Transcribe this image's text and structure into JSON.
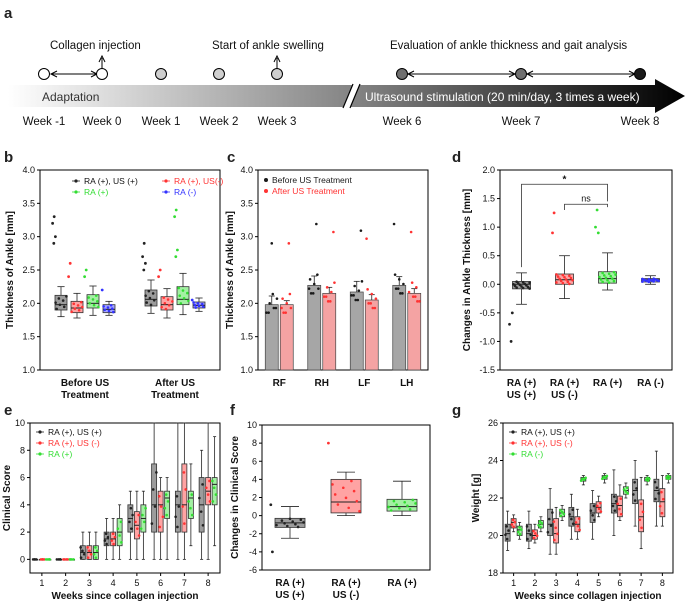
{
  "panel_labels": [
    "a",
    "b",
    "c",
    "d",
    "e",
    "f",
    "g"
  ],
  "timeline": {
    "events": [
      "Collagen injection",
      "Start of ankle swelling",
      "Evaluation of ankle thickness and gait analysis"
    ],
    "phase_adaptation": "Adaptation",
    "phase_ultrasound": "Ultrasound stimulation (20 min/day, 3 times a week)",
    "weeks": [
      "Week -1",
      "Week 0",
      "Week 1",
      "Week 2",
      "Week 3",
      "Week 6",
      "Week 7",
      "Week 8"
    ],
    "colors": {
      "open": "#ffffff",
      "light": "#cfcfcf",
      "mid": "#6f6f6f",
      "dark": "#1a1a1a"
    }
  },
  "chart_data": [
    {
      "id": "b",
      "type": "box",
      "ylabel": "Thickness of Ankle [mm]",
      "ylim": [
        1.0,
        4.0
      ],
      "yticks": [
        "1.0",
        "1.5",
        "2.0",
        "2.5",
        "3.0",
        "3.5",
        "4.0"
      ],
      "categories": [
        "Before US Treatment",
        "After US Treatment"
      ],
      "legend": [
        "RA (+), US (+)",
        "RA (+), US(-)",
        "RA (+)",
        "RA (-)"
      ],
      "colors": [
        "#222222",
        "#ff3333",
        "#33dd33",
        "#3333ff"
      ],
      "boxes": [
        [
          [
            1.8,
            1.9,
            1.98,
            2.12,
            2.25
          ],
          [
            1.78,
            1.86,
            1.93,
            2.03,
            2.15
          ],
          [
            1.82,
            1.93,
            2.0,
            2.13,
            2.26
          ],
          [
            1.82,
            1.86,
            1.91,
            1.98,
            2.03
          ]
        ],
        [
          [
            1.85,
            1.96,
            2.06,
            2.2,
            2.35
          ],
          [
            1.78,
            1.9,
            1.98,
            2.1,
            2.22
          ],
          [
            1.83,
            1.98,
            2.06,
            2.25,
            2.45
          ],
          [
            1.88,
            1.93,
            1.97,
            2.02,
            2.08
          ]
        ]
      ],
      "outliers": [
        [
          [
            3.3,
            3.2,
            3.0,
            2.9
          ],
          [
            2.6,
            2.4
          ],
          [
            2.5,
            2.4
          ],
          [
            2.2
          ]
        ],
        [
          [
            2.9,
            2.7,
            2.6,
            2.5
          ],
          [
            2.5,
            2.4
          ],
          [
            3.4,
            3.3,
            2.8,
            2.7
          ],
          [
            2.05
          ]
        ]
      ]
    },
    {
      "id": "c",
      "type": "bar",
      "ylabel": "Thickness of Ankle [mm]",
      "ylim": [
        1.0,
        4.0
      ],
      "yticks": [
        "1.0",
        "1.5",
        "2.0",
        "2.5",
        "3.0",
        "3.5",
        "4.0"
      ],
      "categories": [
        "RF",
        "RH",
        "LF",
        "LH"
      ],
      "series": [
        {
          "name": "Before US Treatment",
          "color": "#1a1a1a",
          "values": [
            1.98,
            2.27,
            2.17,
            2.27
          ],
          "err": [
            0.13,
            0.14,
            0.16,
            0.13
          ]
        },
        {
          "name": "After US Treatment",
          "color": "#ff3333",
          "values": [
            1.98,
            2.15,
            2.05,
            2.15
          ],
          "err": [
            0.06,
            0.09,
            0.08,
            0.07
          ]
        }
      ]
    },
    {
      "id": "d",
      "type": "box",
      "ylabel": "Changes in Ankle Thickness [mm]",
      "ylim": [
        -1.5,
        2.0
      ],
      "yticks": [
        "-1.5",
        "-1.0",
        "-0.5",
        "0.0",
        "0.5",
        "1.0",
        "1.5",
        "2.0"
      ],
      "categories": [
        "RA (+) US (+)",
        "RA (+) US (-)",
        "RA (+)",
        "RA (-)"
      ],
      "colors": [
        "#222222",
        "#ff3333",
        "#33dd33",
        "#3333ff"
      ],
      "boxes": [
        [
          -0.35,
          -0.08,
          0.0,
          0.05,
          0.2
        ],
        [
          -0.25,
          0.0,
          0.08,
          0.18,
          0.5
        ],
        [
          -0.1,
          0.02,
          0.1,
          0.22,
          0.55
        ],
        [
          0.0,
          0.04,
          0.08,
          0.1,
          0.15
        ]
      ],
      "outliers": [
        [
          -1.0,
          -0.7,
          -0.5
        ],
        [
          1.25,
          0.9
        ],
        [
          1.3,
          1.0,
          0.9
        ],
        []
      ],
      "annotations": {
        "significant": "*",
        "not_significant": "ns"
      }
    },
    {
      "id": "e",
      "type": "box",
      "ylabel": "Clinical Score",
      "ylim": [
        -1,
        10
      ],
      "yticks": [
        "0",
        "2",
        "4",
        "6",
        "8",
        "10"
      ],
      "xlabel": "Weeks since collagen injection",
      "categories": [
        "1",
        "2",
        "3",
        "4",
        "5",
        "6",
        "7",
        "8"
      ],
      "legend": [
        "RA (+), US (+)",
        "RA (+), US (-)",
        "RA (+)"
      ],
      "colors": [
        "#222222",
        "#ff3333",
        "#33dd33"
      ],
      "boxes": [
        [
          [
            0,
            0,
            0,
            0,
            0
          ],
          [
            0,
            0,
            0,
            0,
            0
          ],
          [
            0,
            0,
            0,
            0,
            0
          ]
        ],
        [
          [
            0,
            0,
            0,
            0,
            0
          ],
          [
            0,
            0,
            0,
            0,
            0
          ],
          [
            0,
            0,
            0,
            0,
            0
          ]
        ],
        [
          [
            0,
            0,
            0.5,
            1,
            2
          ],
          [
            0,
            0,
            0.5,
            1,
            2
          ],
          [
            0,
            0,
            0.5,
            1,
            2
          ]
        ],
        [
          [
            0,
            1,
            1.5,
            2,
            3
          ],
          [
            0,
            1,
            1.5,
            2,
            3
          ],
          [
            0,
            1,
            2,
            3,
            4
          ]
        ],
        [
          [
            0,
            2,
            3,
            4,
            5
          ],
          [
            0,
            1.5,
            2.5,
            3.5,
            5
          ],
          [
            0,
            2,
            3,
            4,
            5
          ]
        ],
        [
          [
            0,
            2,
            4,
            7,
            10
          ],
          [
            0,
            2,
            4,
            5,
            6
          ],
          [
            0,
            3,
            4.5,
            5,
            6
          ]
        ],
        [
          [
            0,
            2,
            4,
            5,
            10
          ],
          [
            0,
            2,
            4,
            7,
            10
          ],
          [
            1,
            3,
            4.5,
            5,
            7
          ]
        ],
        [
          [
            0,
            2,
            4,
            6,
            8
          ],
          [
            0,
            4,
            5,
            6,
            10
          ],
          [
            1,
            4,
            5.5,
            6,
            9
          ]
        ]
      ]
    },
    {
      "id": "f",
      "type": "box",
      "ylabel": "Changes in Clinical Score",
      "ylim": [
        -6,
        10
      ],
      "yticks": [
        "-6",
        "-4",
        "-2",
        "0",
        "2",
        "4",
        "6",
        "8",
        "10"
      ],
      "categories": [
        "RA (+) US (+)",
        "RA (+) US (-)",
        "RA (+)"
      ],
      "colors": [
        "#222222",
        "#ff3333",
        "#33dd33"
      ],
      "boxes": [
        [
          -2.5,
          -1.3,
          -0.8,
          -0.3,
          1.0
        ],
        [
          0,
          0.3,
          1.5,
          4.0,
          4.8
        ],
        [
          0,
          0.5,
          1.0,
          1.8,
          3.8
        ]
      ],
      "outliers": [
        [
          -4,
          1.2
        ],
        [
          8
        ],
        []
      ]
    },
    {
      "id": "g",
      "type": "box",
      "ylabel": "Weight [g]",
      "ylim": [
        18,
        26
      ],
      "yticks": [
        "18",
        "20",
        "22",
        "24",
        "26"
      ],
      "xlabel": "Weeks since collagen injection",
      "categories": [
        "1",
        "2",
        "3",
        "4",
        "5",
        "6",
        "7",
        "8"
      ],
      "legend": [
        "RA (+), US (+)",
        "RA (+), US (-)",
        "RA (-)"
      ],
      "colors": [
        "#222222",
        "#ff3333",
        "#33dd33"
      ],
      "boxes": [
        [
          [
            19.2,
            19.7,
            20.1,
            20.6,
            21.3
          ],
          [
            20.2,
            20.4,
            20.7,
            20.9,
            21.1
          ],
          [
            19.8,
            20.0,
            20.3,
            20.5,
            20.7
          ]
        ],
        [
          [
            19.3,
            19.7,
            20.1,
            20.6,
            21.3
          ],
          [
            19.6,
            19.8,
            20.0,
            20.3,
            20.6
          ],
          [
            20.2,
            20.4,
            20.6,
            20.8,
            21.0
          ]
        ],
        [
          [
            19.0,
            20.0,
            20.6,
            21.4,
            22.5
          ],
          [
            19.0,
            19.6,
            20.1,
            20.9,
            21.5
          ],
          [
            20.8,
            21.0,
            21.2,
            21.4,
            21.6
          ]
        ],
        [
          [
            19.8,
            20.5,
            21.0,
            21.5,
            22.2
          ],
          [
            19.8,
            20.2,
            20.6,
            21.0,
            21.4
          ],
          [
            22.7,
            22.9,
            23.0,
            23.1,
            23.2
          ]
        ],
        [
          [
            19.8,
            20.7,
            21.2,
            21.7,
            22.4
          ],
          [
            21.0,
            21.2,
            21.5,
            21.8,
            22.1
          ],
          [
            22.8,
            23.0,
            23.1,
            23.2,
            23.3
          ]
        ],
        [
          [
            20.0,
            21.2,
            21.7,
            22.2,
            23.5
          ],
          [
            20.8,
            21.0,
            21.6,
            22.1,
            22.7
          ],
          [
            22.0,
            22.2,
            22.4,
            22.6,
            22.8
          ]
        ],
        [
          [
            20.5,
            21.7,
            22.4,
            23.0,
            24.0
          ],
          [
            19.3,
            20.2,
            21.0,
            21.9,
            23.1
          ],
          [
            22.7,
            22.9,
            23.0,
            23.1,
            23.2
          ]
        ],
        [
          [
            20.5,
            21.8,
            22.4,
            23.0,
            24.5
          ],
          [
            20.5,
            21.0,
            21.8,
            22.5,
            23.2
          ],
          [
            22.8,
            23.0,
            23.1,
            23.2,
            23.3
          ]
        ]
      ]
    }
  ]
}
